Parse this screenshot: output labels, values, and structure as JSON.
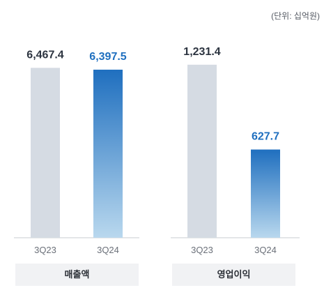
{
  "unit_note": "(단위: 십억원)",
  "chart_data": [
    {
      "type": "bar",
      "categories": [
        "3Q23",
        "3Q24"
      ],
      "values": [
        6467.4,
        6397.5
      ],
      "value_labels": [
        "6,467.4",
        "6,397.5"
      ],
      "group_label": "매출액",
      "ylim": [
        0,
        6900
      ]
    },
    {
      "type": "bar",
      "categories": [
        "3Q23",
        "3Q24"
      ],
      "values": [
        1231.4,
        627.7
      ],
      "value_labels": [
        "1,231.4",
        "627.7"
      ],
      "group_label": "영업이익",
      "ylim": [
        0,
        1290
      ]
    }
  ],
  "colors": {
    "prior_bar": "#d5dbe3",
    "current_top": "#1f6fbf",
    "current_bottom": "#b9d8ee",
    "prior_label": "#2c3440",
    "current_label": "#1f6fbf",
    "axis": "#c9ccd1",
    "tick_label": "#6b7079"
  }
}
